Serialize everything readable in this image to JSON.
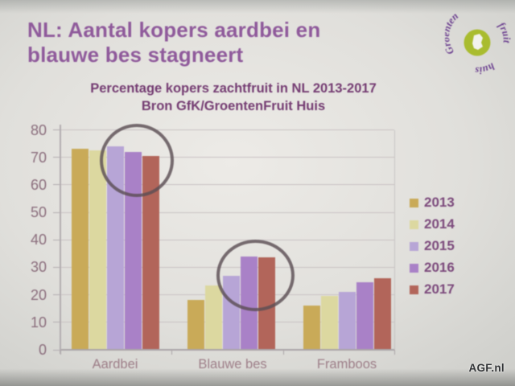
{
  "slide": {
    "title": "NL: Aantal kopers aardbei en blauwe bes stagneert",
    "title_color": "#8f5a9b"
  },
  "logo": {
    "alt": "GroentenFruit Huis logo",
    "words": {
      "top": "Groenten",
      "right": "fruit",
      "bottom": "huis"
    },
    "circle_color": "#a9bc2f",
    "text_color": "#6b3f8f"
  },
  "watermark": "AGF.nl",
  "chart_data": {
    "type": "bar",
    "title": "Percentage kopers zachtfruit in NL 2013-2017",
    "subtitle": "Bron GfK/GroentenFruit Huis",
    "categories": [
      "Aardbei",
      "Blauwe bes",
      "Framboos"
    ],
    "series": [
      {
        "name": "2013",
        "color": "#c9aa58",
        "values": [
          73,
          18,
          16
        ]
      },
      {
        "name": "2014",
        "color": "#dcd8a0",
        "values": [
          72.5,
          23.5,
          19.5
        ]
      },
      {
        "name": "2015",
        "color": "#b7a5d6",
        "values": [
          74,
          27,
          21
        ]
      },
      {
        "name": "2016",
        "color": "#a981c7",
        "values": [
          72,
          34,
          24.5
        ]
      },
      {
        "name": "2017",
        "color": "#b2655a",
        "values": [
          70.5,
          33.5,
          26
        ]
      }
    ],
    "ylabel": "",
    "xlabel": "",
    "ylim": [
      0,
      80
    ],
    "ytick_step": 10,
    "grid": true,
    "legend_position": "right",
    "annotations": [
      "circle around Aardbei 2015-2017 bars",
      "circle around Blauwe bes 2015-2017 bars"
    ]
  }
}
